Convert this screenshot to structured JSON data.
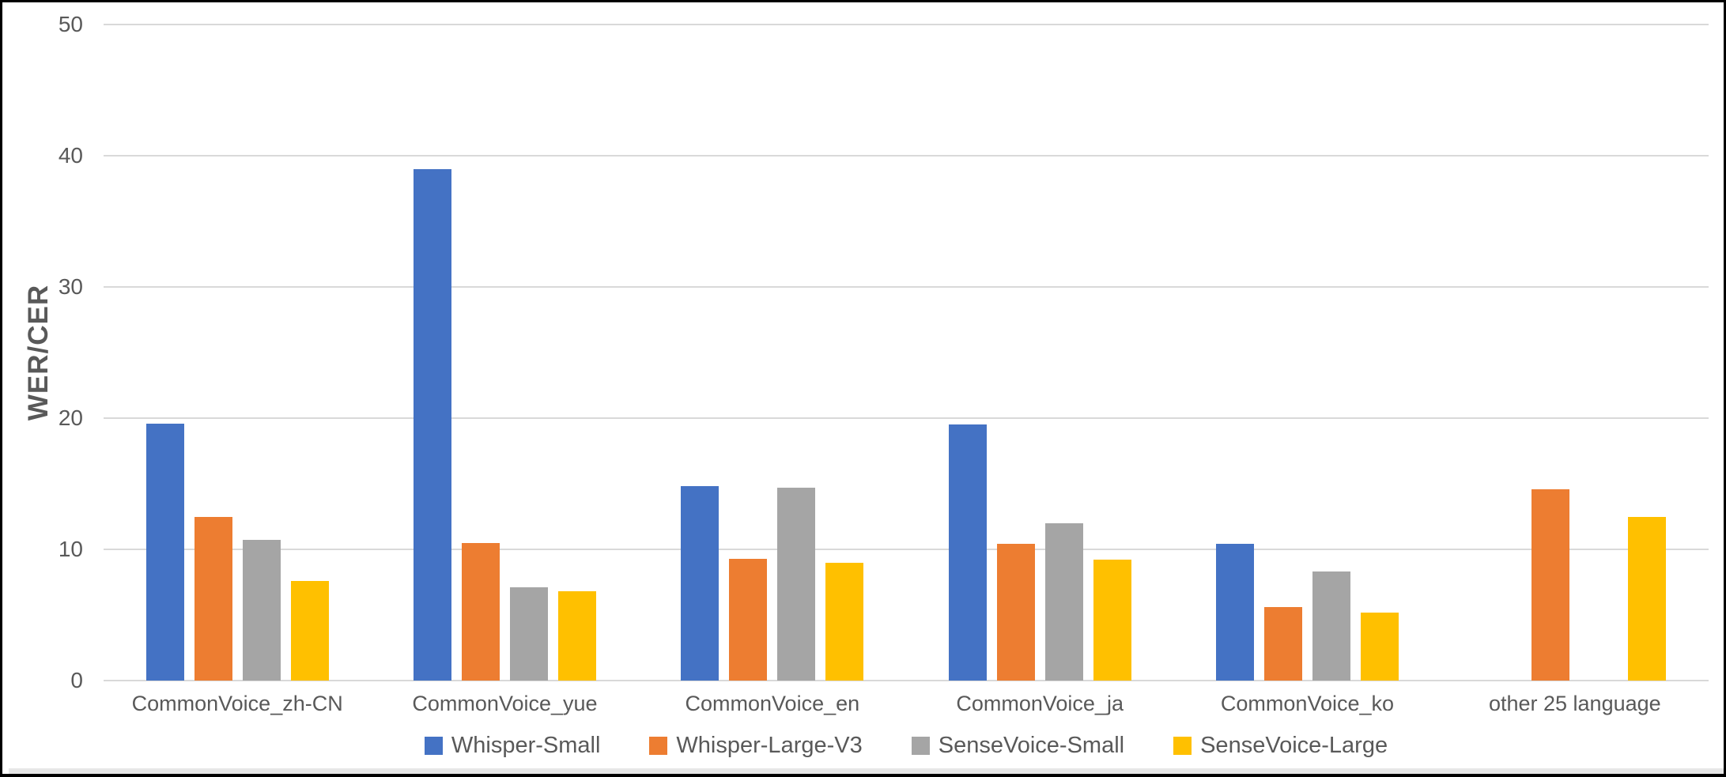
{
  "chart_data": {
    "type": "bar",
    "title": "",
    "xlabel": "",
    "ylabel": "WER/CER",
    "ylim": [
      0,
      50
    ],
    "yticks": [
      0,
      10,
      20,
      30,
      40,
      50
    ],
    "grid": true,
    "legend_position": "bottom",
    "categories": [
      "CommonVoice_zh-CN",
      "CommonVoice_yue",
      "CommonVoice_en",
      "CommonVoice_ja",
      "CommonVoice_ko",
      "other 25 language"
    ],
    "series": [
      {
        "name": "Whisper-Small",
        "color": "#4472C4",
        "values": [
          19.6,
          39.0,
          14.8,
          19.5,
          10.4,
          null
        ]
      },
      {
        "name": "Whisper-Large-V3",
        "color": "#ED7D31",
        "values": [
          12.5,
          10.5,
          9.3,
          10.4,
          5.6,
          14.6
        ]
      },
      {
        "name": "SenseVoice-Small",
        "color": "#A5A5A5",
        "values": [
          10.7,
          7.1,
          14.7,
          12.0,
          8.3,
          null
        ]
      },
      {
        "name": "SenseVoice-Large",
        "color": "#FFC000",
        "values": [
          7.6,
          6.8,
          9.0,
          9.2,
          5.2,
          12.5
        ]
      }
    ]
  },
  "colors": {
    "background": "#FFFFFF",
    "frame_border": "#000000",
    "gridline": "#D9D9D9",
    "axis_text": "#595959",
    "bottom_shadow": "#E7E7E7"
  }
}
